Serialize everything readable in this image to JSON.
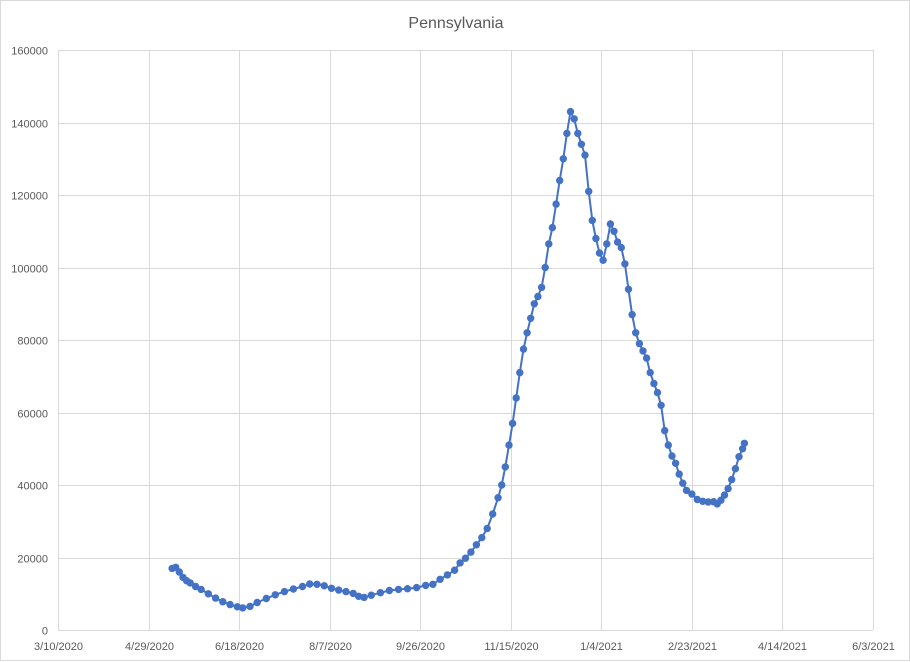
{
  "chart_data": {
    "type": "line",
    "title": "Pennsylvania",
    "xlabel": "",
    "ylabel": "",
    "x_axis": {
      "type": "date",
      "range": [
        "2020-03-10",
        "2021-06-03"
      ],
      "tick_dates": [
        "2020-03-10",
        "2020-04-29",
        "2020-06-18",
        "2020-08-07",
        "2020-09-26",
        "2020-11-15",
        "2021-01-04",
        "2021-02-23",
        "2021-04-14",
        "2021-06-03"
      ],
      "tick_labels": [
        "3/10/2020",
        "4/29/2020",
        "6/18/2020",
        "8/7/2020",
        "9/26/2020",
        "11/15/2020",
        "1/4/2021",
        "2/23/2021",
        "4/14/2021",
        "6/3/2021"
      ]
    },
    "y_axis": {
      "range": [
        0,
        160000
      ],
      "ticks": [
        0,
        20000,
        40000,
        60000,
        80000,
        100000,
        120000,
        140000,
        160000
      ],
      "tick_labels": [
        "0",
        "20000",
        "40000",
        "60000",
        "80000",
        "100000",
        "120000",
        "140000",
        "160000"
      ]
    },
    "grid": true,
    "legend": "none",
    "marker": "circle",
    "series": [
      {
        "color": "#4472c4",
        "points": [
          [
            "2020-05-12",
            17000
          ],
          [
            "2020-05-14",
            17300
          ],
          [
            "2020-05-16",
            16000
          ],
          [
            "2020-05-18",
            14500
          ],
          [
            "2020-05-20",
            13600
          ],
          [
            "2020-05-22",
            13000
          ],
          [
            "2020-05-25",
            12000
          ],
          [
            "2020-05-28",
            11200
          ],
          [
            "2020-06-01",
            10000
          ],
          [
            "2020-06-05",
            8800
          ],
          [
            "2020-06-09",
            7800
          ],
          [
            "2020-06-13",
            7000
          ],
          [
            "2020-06-17",
            6400
          ],
          [
            "2020-06-20",
            6100
          ],
          [
            "2020-06-24",
            6500
          ],
          [
            "2020-06-28",
            7600
          ],
          [
            "2020-07-03",
            8700
          ],
          [
            "2020-07-08",
            9700
          ],
          [
            "2020-07-13",
            10600
          ],
          [
            "2020-07-18",
            11300
          ],
          [
            "2020-07-23",
            12000
          ],
          [
            "2020-07-27",
            12700
          ],
          [
            "2020-07-31",
            12600
          ],
          [
            "2020-08-04",
            12200
          ],
          [
            "2020-08-08",
            11500
          ],
          [
            "2020-08-12",
            11000
          ],
          [
            "2020-08-16",
            10600
          ],
          [
            "2020-08-20",
            10100
          ],
          [
            "2020-08-23",
            9300
          ],
          [
            "2020-08-26",
            9000
          ],
          [
            "2020-08-30",
            9600
          ],
          [
            "2020-09-04",
            10300
          ],
          [
            "2020-09-09",
            10900
          ],
          [
            "2020-09-14",
            11200
          ],
          [
            "2020-09-19",
            11400
          ],
          [
            "2020-09-24",
            11700
          ],
          [
            "2020-09-29",
            12300
          ],
          [
            "2020-10-03",
            12600
          ],
          [
            "2020-10-07",
            14000
          ],
          [
            "2020-10-11",
            15200
          ],
          [
            "2020-10-15",
            16500
          ],
          [
            "2020-10-18",
            18500
          ],
          [
            "2020-10-21",
            19800
          ],
          [
            "2020-10-24",
            21500
          ],
          [
            "2020-10-27",
            23500
          ],
          [
            "2020-10-30",
            25500
          ],
          [
            "2020-11-02",
            28000
          ],
          [
            "2020-11-05",
            32000
          ],
          [
            "2020-11-08",
            36500
          ],
          [
            "2020-11-10",
            40000
          ],
          [
            "2020-11-12",
            45000
          ],
          [
            "2020-11-14",
            51000
          ],
          [
            "2020-11-16",
            57000
          ],
          [
            "2020-11-18",
            64000
          ],
          [
            "2020-11-20",
            71000
          ],
          [
            "2020-11-22",
            77500
          ],
          [
            "2020-11-24",
            82000
          ],
          [
            "2020-11-26",
            86000
          ],
          [
            "2020-11-28",
            90000
          ],
          [
            "2020-11-30",
            92000
          ],
          [
            "2020-12-02",
            94500
          ],
          [
            "2020-12-04",
            100000
          ],
          [
            "2020-12-06",
            106500
          ],
          [
            "2020-12-08",
            111000
          ],
          [
            "2020-12-10",
            117500
          ],
          [
            "2020-12-12",
            124000
          ],
          [
            "2020-12-14",
            130000
          ],
          [
            "2020-12-16",
            137000
          ],
          [
            "2020-12-18",
            143000
          ],
          [
            "2020-12-20",
            141000
          ],
          [
            "2020-12-22",
            137000
          ],
          [
            "2020-12-24",
            134000
          ],
          [
            "2020-12-26",
            131000
          ],
          [
            "2020-12-28",
            121000
          ],
          [
            "2020-12-30",
            113000
          ],
          [
            "2021-01-01",
            108000
          ],
          [
            "2021-01-03",
            104000
          ],
          [
            "2021-01-05",
            102000
          ],
          [
            "2021-01-07",
            106500
          ],
          [
            "2021-01-09",
            112000
          ],
          [
            "2021-01-11",
            110000
          ],
          [
            "2021-01-13",
            107000
          ],
          [
            "2021-01-15",
            105500
          ],
          [
            "2021-01-17",
            101000
          ],
          [
            "2021-01-19",
            94000
          ],
          [
            "2021-01-21",
            87000
          ],
          [
            "2021-01-23",
            82000
          ],
          [
            "2021-01-25",
            79000
          ],
          [
            "2021-01-27",
            77000
          ],
          [
            "2021-01-29",
            75000
          ],
          [
            "2021-01-31",
            71000
          ],
          [
            "2021-02-02",
            68000
          ],
          [
            "2021-02-04",
            65500
          ],
          [
            "2021-02-06",
            62000
          ],
          [
            "2021-02-08",
            55000
          ],
          [
            "2021-02-10",
            51000
          ],
          [
            "2021-02-12",
            48000
          ],
          [
            "2021-02-14",
            46000
          ],
          [
            "2021-02-16",
            43000
          ],
          [
            "2021-02-18",
            40500
          ],
          [
            "2021-02-20",
            38500
          ],
          [
            "2021-02-23",
            37500
          ],
          [
            "2021-02-26",
            36000
          ],
          [
            "2021-03-01",
            35500
          ],
          [
            "2021-03-04",
            35300
          ],
          [
            "2021-03-07",
            35400
          ],
          [
            "2021-03-09",
            34800
          ],
          [
            "2021-03-11",
            35800
          ],
          [
            "2021-03-13",
            37200
          ],
          [
            "2021-03-15",
            39000
          ],
          [
            "2021-03-17",
            41500
          ],
          [
            "2021-03-19",
            44500
          ],
          [
            "2021-03-21",
            47800
          ],
          [
            "2021-03-23",
            50000
          ],
          [
            "2021-03-24",
            51500
          ]
        ]
      }
    ]
  }
}
